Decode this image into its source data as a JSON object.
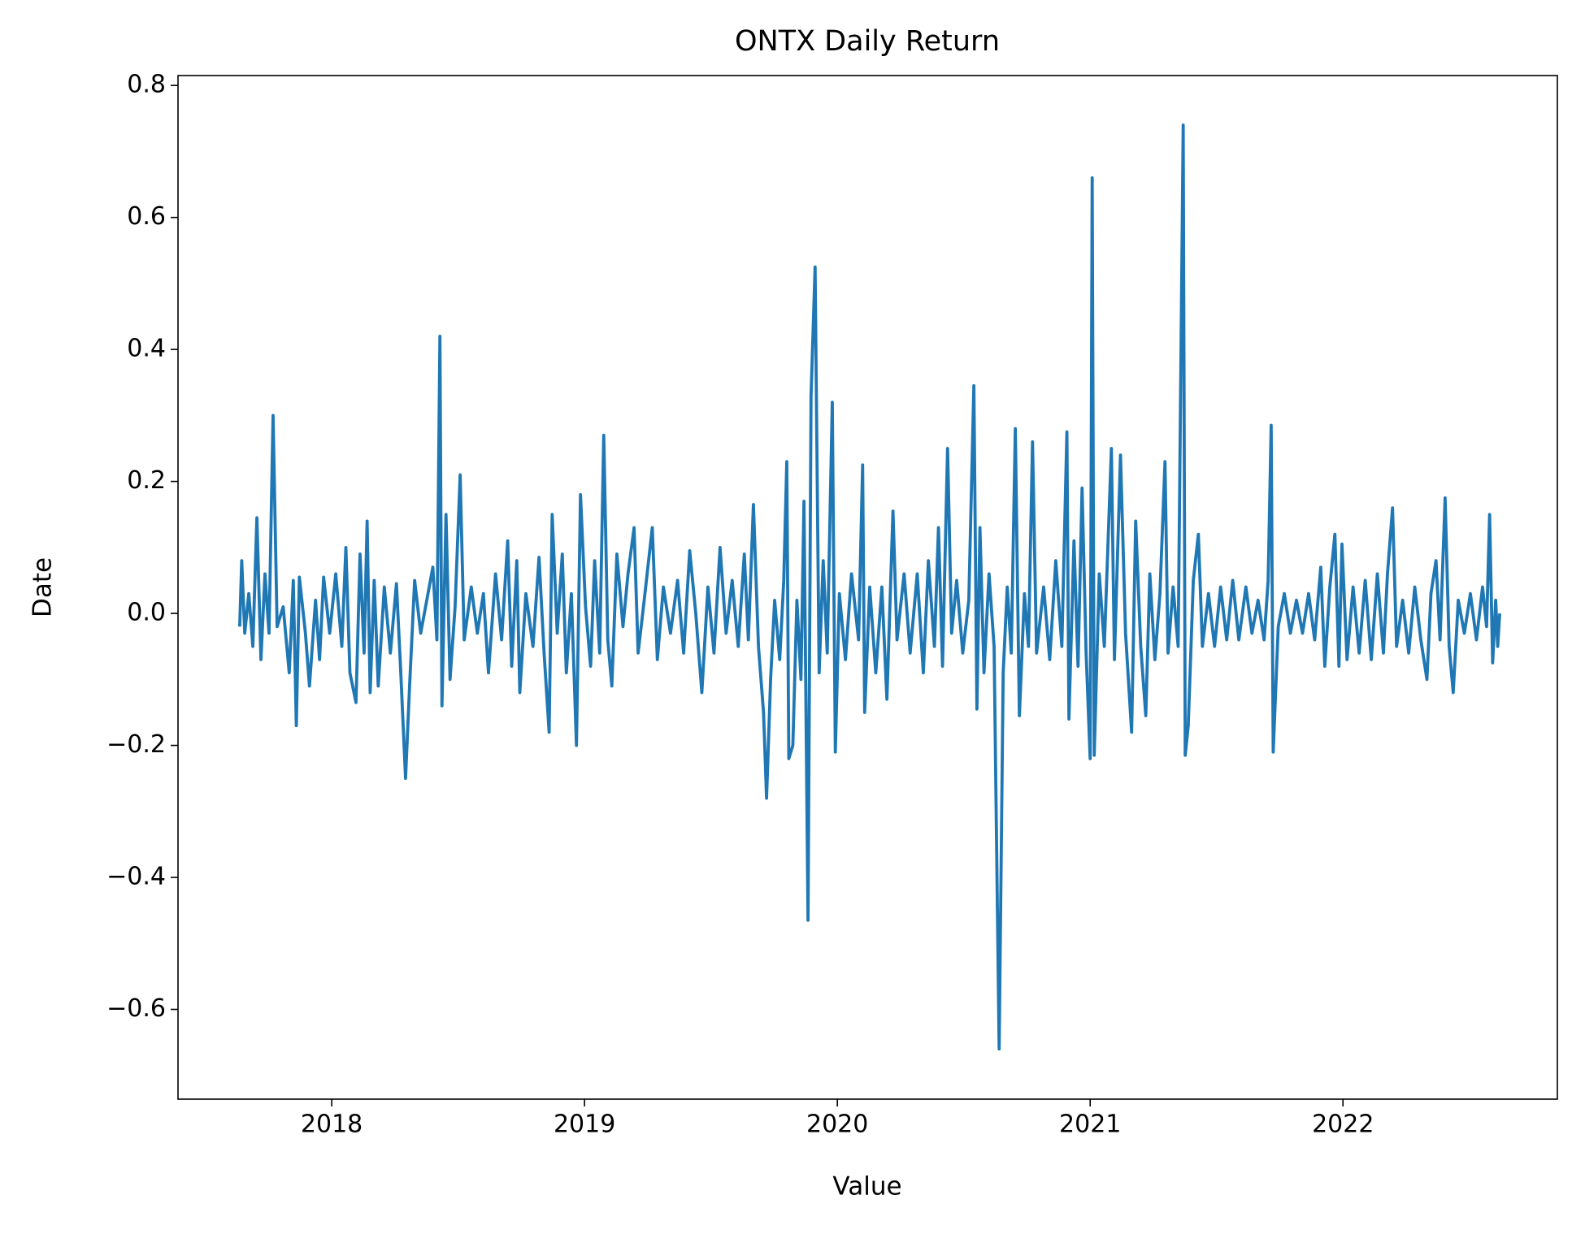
{
  "chart_data": {
    "type": "line",
    "title": "ONTX Daily Return",
    "xlabel": "Value",
    "ylabel": "Date",
    "color": "#1f77b4",
    "grid": false,
    "xlim": [
      2017.392,
      2022.848
    ],
    "ylim": [
      -0.736,
      0.815
    ],
    "xticks": [
      2018,
      2019,
      2020,
      2021,
      2022
    ],
    "yticks": [
      {
        "value": -0.6,
        "label": "−0.6"
      },
      {
        "value": -0.4,
        "label": "−0.4"
      },
      {
        "value": -0.2,
        "label": "−0.2"
      },
      {
        "value": 0,
        "label": "0.0"
      },
      0.2,
      0.4,
      0.6,
      0.8
    ],
    "x": [
      2017.636,
      2017.644,
      2017.656,
      2017.672,
      2017.688,
      2017.704,
      2017.72,
      2017.736,
      2017.752,
      2017.768,
      2017.784,
      2017.808,
      2017.832,
      2017.848,
      2017.86,
      2017.872,
      2017.896,
      2017.912,
      2017.936,
      2017.952,
      2017.968,
      2017.992,
      2018.016,
      2018.04,
      2018.056,
      2018.072,
      2018.096,
      2018.112,
      2018.128,
      2018.14,
      2018.152,
      2018.168,
      2018.184,
      2018.208,
      2018.232,
      2018.256,
      2018.272,
      2018.292,
      2018.308,
      2018.328,
      2018.352,
      2018.376,
      2018.4,
      2018.416,
      2018.428,
      2018.436,
      2018.452,
      2018.468,
      2018.488,
      2018.508,
      2018.524,
      2018.552,
      2018.576,
      2018.6,
      2018.62,
      2018.648,
      2018.672,
      2018.696,
      2018.712,
      2018.732,
      2018.744,
      2018.768,
      2018.796,
      2018.82,
      2018.84,
      2018.86,
      2018.872,
      2018.892,
      2018.912,
      2018.928,
      2018.948,
      2018.968,
      2018.984,
      2019.004,
      2019.024,
      2019.04,
      2019.06,
      2019.076,
      2019.092,
      2019.108,
      2019.128,
      2019.152,
      2019.172,
      2019.196,
      2019.212,
      2019.236,
      2019.268,
      2019.288,
      2019.312,
      2019.34,
      2019.368,
      2019.392,
      2019.416,
      2019.44,
      2019.464,
      2019.488,
      2019.512,
      2019.536,
      2019.56,
      2019.584,
      2019.608,
      2019.632,
      2019.648,
      2019.668,
      2019.688,
      2019.708,
      2019.72,
      2019.736,
      2019.752,
      2019.772,
      2019.788,
      2019.8,
      2019.808,
      2019.824,
      2019.84,
      2019.856,
      2019.868,
      2019.884,
      2019.896,
      2019.912,
      2019.928,
      2019.944,
      2019.96,
      2019.98,
      2019.992,
      2020.008,
      2020.032,
      2020.056,
      2020.084,
      2020.1,
      2020.108,
      2020.128,
      2020.152,
      2020.176,
      2020.196,
      2020.22,
      2020.236,
      2020.264,
      2020.288,
      2020.316,
      2020.34,
      2020.36,
      2020.384,
      2020.4,
      2020.416,
      2020.436,
      2020.452,
      2020.472,
      2020.496,
      2020.52,
      2020.54,
      2020.552,
      2020.564,
      2020.58,
      2020.6,
      2020.62,
      2020.64,
      2020.656,
      2020.672,
      2020.688,
      2020.704,
      2020.72,
      2020.74,
      2020.756,
      2020.772,
      2020.788,
      2020.816,
      2020.84,
      2020.864,
      2020.888,
      2020.908,
      2020.916,
      2020.936,
      2020.952,
      2020.968,
      2020.984,
      2021.0,
      2021.008,
      2021.016,
      2021.036,
      2021.056,
      2021.084,
      2021.096,
      2021.12,
      2021.14,
      2021.164,
      2021.18,
      2021.2,
      2021.22,
      2021.236,
      2021.256,
      2021.276,
      2021.296,
      2021.308,
      2021.328,
      2021.348,
      2021.368,
      2021.376,
      2021.388,
      2021.408,
      2021.428,
      2021.444,
      2021.468,
      2021.492,
      2021.516,
      2021.54,
      2021.564,
      2021.588,
      2021.616,
      2021.64,
      2021.664,
      2021.688,
      2021.704,
      2021.716,
      2021.724,
      2021.744,
      2021.768,
      2021.792,
      2021.816,
      2021.84,
      2021.864,
      2021.888,
      2021.912,
      2021.928,
      2021.948,
      2021.968,
      2021.984,
      2021.996,
      2022.016,
      2022.04,
      2022.064,
      2022.088,
      2022.112,
      2022.136,
      2022.16,
      2022.176,
      2022.196,
      2022.212,
      2022.236,
      2022.26,
      2022.284,
      2022.308,
      2022.332,
      2022.348,
      2022.368,
      2022.384,
      2022.404,
      2022.42,
      2022.436,
      2022.456,
      2022.48,
      2022.504,
      2022.528,
      2022.552,
      2022.568,
      2022.58,
      2022.592,
      2022.604,
      2022.612,
      2022.62
    ],
    "values": [
      -0.02,
      0.08,
      -0.03,
      0.03,
      -0.05,
      0.145,
      -0.07,
      0.06,
      -0.03,
      0.3,
      -0.02,
      0.01,
      -0.09,
      0.05,
      -0.17,
      0.055,
      -0.03,
      -0.11,
      0.02,
      -0.07,
      0.055,
      -0.03,
      0.06,
      -0.05,
      0.1,
      -0.09,
      -0.135,
      0.09,
      -0.06,
      0.14,
      -0.12,
      0.05,
      -0.11,
      0.04,
      -0.06,
      0.045,
      -0.08,
      -0.25,
      -0.11,
      0.05,
      -0.03,
      0.02,
      0.07,
      -0.04,
      0.42,
      -0.14,
      0.15,
      -0.1,
      0.01,
      0.21,
      -0.04,
      0.04,
      -0.03,
      0.03,
      -0.09,
      0.06,
      -0.04,
      0.11,
      -0.08,
      0.08,
      -0.12,
      0.03,
      -0.05,
      0.085,
      -0.06,
      -0.18,
      0.15,
      -0.03,
      0.09,
      -0.09,
      0.03,
      -0.2,
      0.18,
      0.01,
      -0.08,
      0.08,
      -0.06,
      0.27,
      -0.04,
      -0.11,
      0.09,
      -0.02,
      0.06,
      0.13,
      -0.06,
      0.02,
      0.13,
      -0.07,
      0.04,
      -0.03,
      0.05,
      -0.06,
      0.095,
      0.0,
      -0.12,
      0.04,
      -0.06,
      0.1,
      -0.03,
      0.05,
      -0.05,
      0.09,
      -0.04,
      0.165,
      -0.05,
      -0.15,
      -0.28,
      -0.1,
      0.02,
      -0.07,
      0.05,
      0.23,
      -0.22,
      -0.2,
      0.02,
      -0.1,
      0.17,
      -0.465,
      0.33,
      0.525,
      -0.09,
      0.08,
      -0.06,
      0.32,
      -0.21,
      0.03,
      -0.07,
      0.06,
      -0.04,
      0.225,
      -0.15,
      0.04,
      -0.09,
      0.04,
      -0.13,
      0.155,
      -0.04,
      0.06,
      -0.06,
      0.06,
      -0.09,
      0.08,
      -0.05,
      0.13,
      -0.08,
      0.25,
      -0.03,
      0.05,
      -0.06,
      0.02,
      0.345,
      -0.145,
      0.13,
      -0.09,
      0.06,
      -0.05,
      -0.66,
      -0.09,
      0.04,
      -0.06,
      0.28,
      -0.155,
      0.03,
      -0.05,
      0.26,
      -0.06,
      0.04,
      -0.07,
      0.08,
      -0.05,
      0.275,
      -0.16,
      0.11,
      -0.08,
      0.19,
      -0.06,
      -0.22,
      0.66,
      -0.215,
      0.06,
      -0.05,
      0.25,
      -0.07,
      0.24,
      -0.03,
      -0.18,
      0.14,
      -0.05,
      -0.155,
      0.06,
      -0.07,
      0.03,
      0.23,
      -0.06,
      0.04,
      -0.05,
      0.74,
      -0.215,
      -0.17,
      0.05,
      0.12,
      -0.05,
      0.03,
      -0.05,
      0.04,
      -0.04,
      0.05,
      -0.04,
      0.04,
      -0.03,
      0.02,
      -0.04,
      0.05,
      0.285,
      -0.21,
      -0.02,
      0.03,
      -0.03,
      0.02,
      -0.03,
      0.03,
      -0.04,
      0.07,
      -0.08,
      0.04,
      0.12,
      -0.08,
      0.105,
      -0.07,
      0.04,
      -0.06,
      0.05,
      -0.07,
      0.06,
      -0.06,
      0.06,
      0.16,
      -0.05,
      0.02,
      -0.06,
      0.04,
      -0.04,
      -0.1,
      0.03,
      0.08,
      -0.04,
      0.175,
      -0.05,
      -0.12,
      0.02,
      -0.03,
      0.03,
      -0.04,
      0.04,
      -0.02,
      0.15,
      -0.075,
      0.02,
      -0.05,
      0.0
    ]
  }
}
